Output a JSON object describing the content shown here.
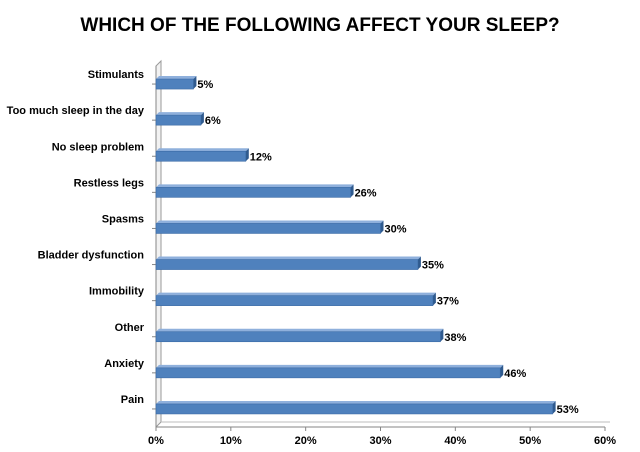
{
  "chart_data": {
    "type": "bar",
    "orientation": "horizontal",
    "title": "WHICH OF THE FOLLOWING AFFECT YOUR SLEEP?",
    "categories": [
      "Stimulants",
      "Too much sleep in the day",
      "No sleep problem",
      "Restless legs",
      "Spasms",
      "Bladder dysfunction",
      "Immobility",
      "Other",
      "Anxiety",
      "Pain"
    ],
    "values": [
      5,
      6,
      12,
      26,
      30,
      35,
      37,
      38,
      46,
      53
    ],
    "value_labels": [
      "5%",
      "6%",
      "12%",
      "26%",
      "30%",
      "35%",
      "37%",
      "38%",
      "46%",
      "53%"
    ],
    "xlim": [
      0,
      60
    ],
    "x_ticks": [
      0,
      10,
      20,
      30,
      40,
      50,
      60
    ],
    "x_tick_labels": [
      "0%",
      "10%",
      "20%",
      "30%",
      "40%",
      "50%",
      "60%"
    ],
    "grid": false,
    "legend": "none",
    "bar_color": "#4F81BD"
  }
}
